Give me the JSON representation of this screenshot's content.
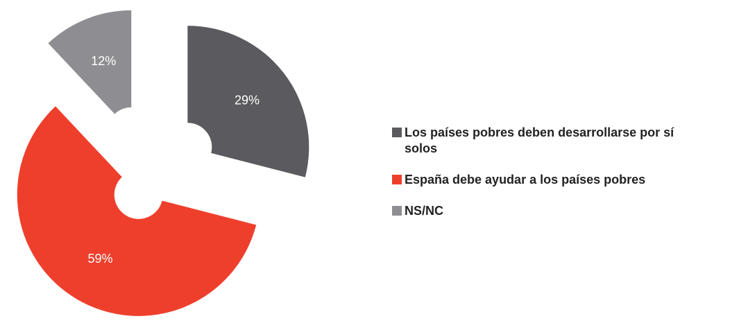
{
  "chart_data": {
    "type": "pie",
    "categories": [
      "Los países pobres deben desarrollarse por sí solos",
      "España debe ayudar a los países pobres",
      "NS/NC"
    ],
    "values": [
      29,
      59,
      12
    ],
    "value_labels": [
      "29%",
      "59%",
      "12%"
    ],
    "colors": [
      "#5b5b5f",
      "#ee3f2c",
      "#8e8e92"
    ]
  }
}
